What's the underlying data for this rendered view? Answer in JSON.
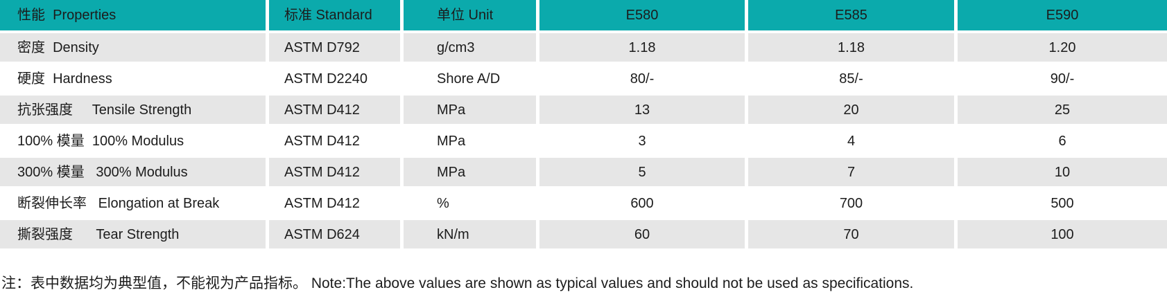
{
  "colors": {
    "header_bg": "#0baaac",
    "row_alt_bg": "#e6e6e6",
    "row_bg": "#ffffff",
    "text": "#1c1c1c"
  },
  "table": {
    "columns": [
      {
        "label": "性能  Properties"
      },
      {
        "label": "标准 Standard"
      },
      {
        "label": "单位 Unit"
      },
      {
        "label": "E580"
      },
      {
        "label": "E585"
      },
      {
        "label": "E590"
      }
    ],
    "rows": [
      {
        "property": "密度  Density",
        "standard": "ASTM D792",
        "unit": "g/cm3",
        "e580": "1.18",
        "e585": "1.18",
        "e590": "1.20"
      },
      {
        "property": "硬度  Hardness",
        "standard": "ASTM D2240",
        "unit": "Shore A/D",
        "e580": "80/-",
        "e585": "85/-",
        "e590": "90/-"
      },
      {
        "property": "抗张强度     Tensile Strength",
        "standard": "ASTM D412",
        "unit": "MPa",
        "e580": "13",
        "e585": "20",
        "e590": "25"
      },
      {
        "property": "100% 模量  100% Modulus",
        "standard": "ASTM D412",
        "unit": "MPa",
        "e580": "3",
        "e585": "4",
        "e590": "6"
      },
      {
        "property": "300% 模量   300% Modulus",
        "standard": "ASTM D412",
        "unit": "MPa",
        "e580": "5",
        "e585": "7",
        "e590": "10"
      },
      {
        "property": "断裂伸长率   Elongation at Break",
        "standard": "ASTM D412",
        "unit": "%",
        "e580": "600",
        "e585": "700",
        "e590": "500"
      },
      {
        "property": "撕裂强度      Tear Strength",
        "standard": "ASTM D624",
        "unit": "kN/m",
        "e580": "60",
        "e585": "70",
        "e590": "100"
      }
    ]
  },
  "note": "注：表中数据均为典型值，不能视为产品指标。 Note:The above values are shown as typical values and should not be used as specifications."
}
